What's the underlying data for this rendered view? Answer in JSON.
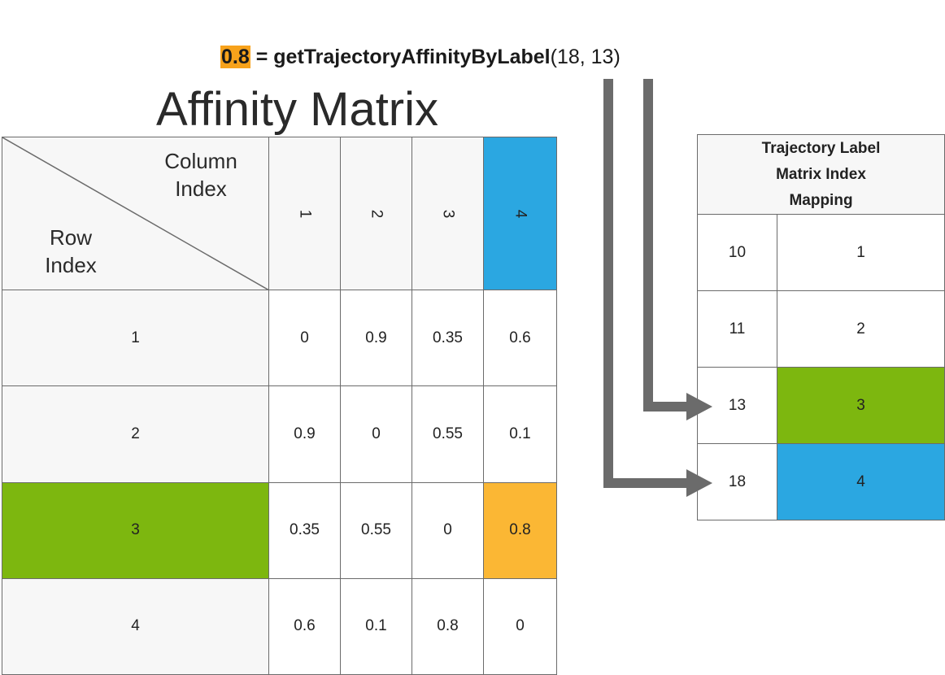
{
  "formula": {
    "result": "0.8",
    "equals": " = ",
    "function_name": "getTrajectoryAffinityByLabel",
    "arguments": "(18, 13)"
  },
  "matrix": {
    "title": "Affinity Matrix",
    "corner_column_label": "Column Index",
    "corner_row_label": "Row Index",
    "column_headers": [
      "1",
      "2",
      "3",
      "4"
    ],
    "rows": [
      {
        "label": "1",
        "cells": [
          "0",
          "0.9",
          "0.35",
          "0.6"
        ]
      },
      {
        "label": "2",
        "cells": [
          "0.9",
          "0",
          "0.55",
          "0.1"
        ]
      },
      {
        "label": "3",
        "cells": [
          "0.35",
          "0.55",
          "0",
          "0.8"
        ]
      },
      {
        "label": "4",
        "cells": [
          "0.6",
          "0.1",
          "0.8",
          "0"
        ]
      }
    ],
    "highlight": {
      "row": "3",
      "column": "4",
      "row_color": "#7db70f",
      "column_color": "#2ba7e1",
      "cell_color": "#fbb734"
    }
  },
  "mapping": {
    "title_line1": "Trajectory Label",
    "title_line2": "Matrix Index",
    "title_line3": "Mapping",
    "rows": [
      {
        "label": "10",
        "index": "1"
      },
      {
        "label": "11",
        "index": "2"
      },
      {
        "label": "13",
        "index": "3"
      },
      {
        "label": "18",
        "index": "4"
      }
    ]
  },
  "colors": {
    "result_highlight": "#f7a21b",
    "arrow": "#6b6b6b",
    "header_bg": "#f7f7f7",
    "border": "#6b6b6b"
  }
}
